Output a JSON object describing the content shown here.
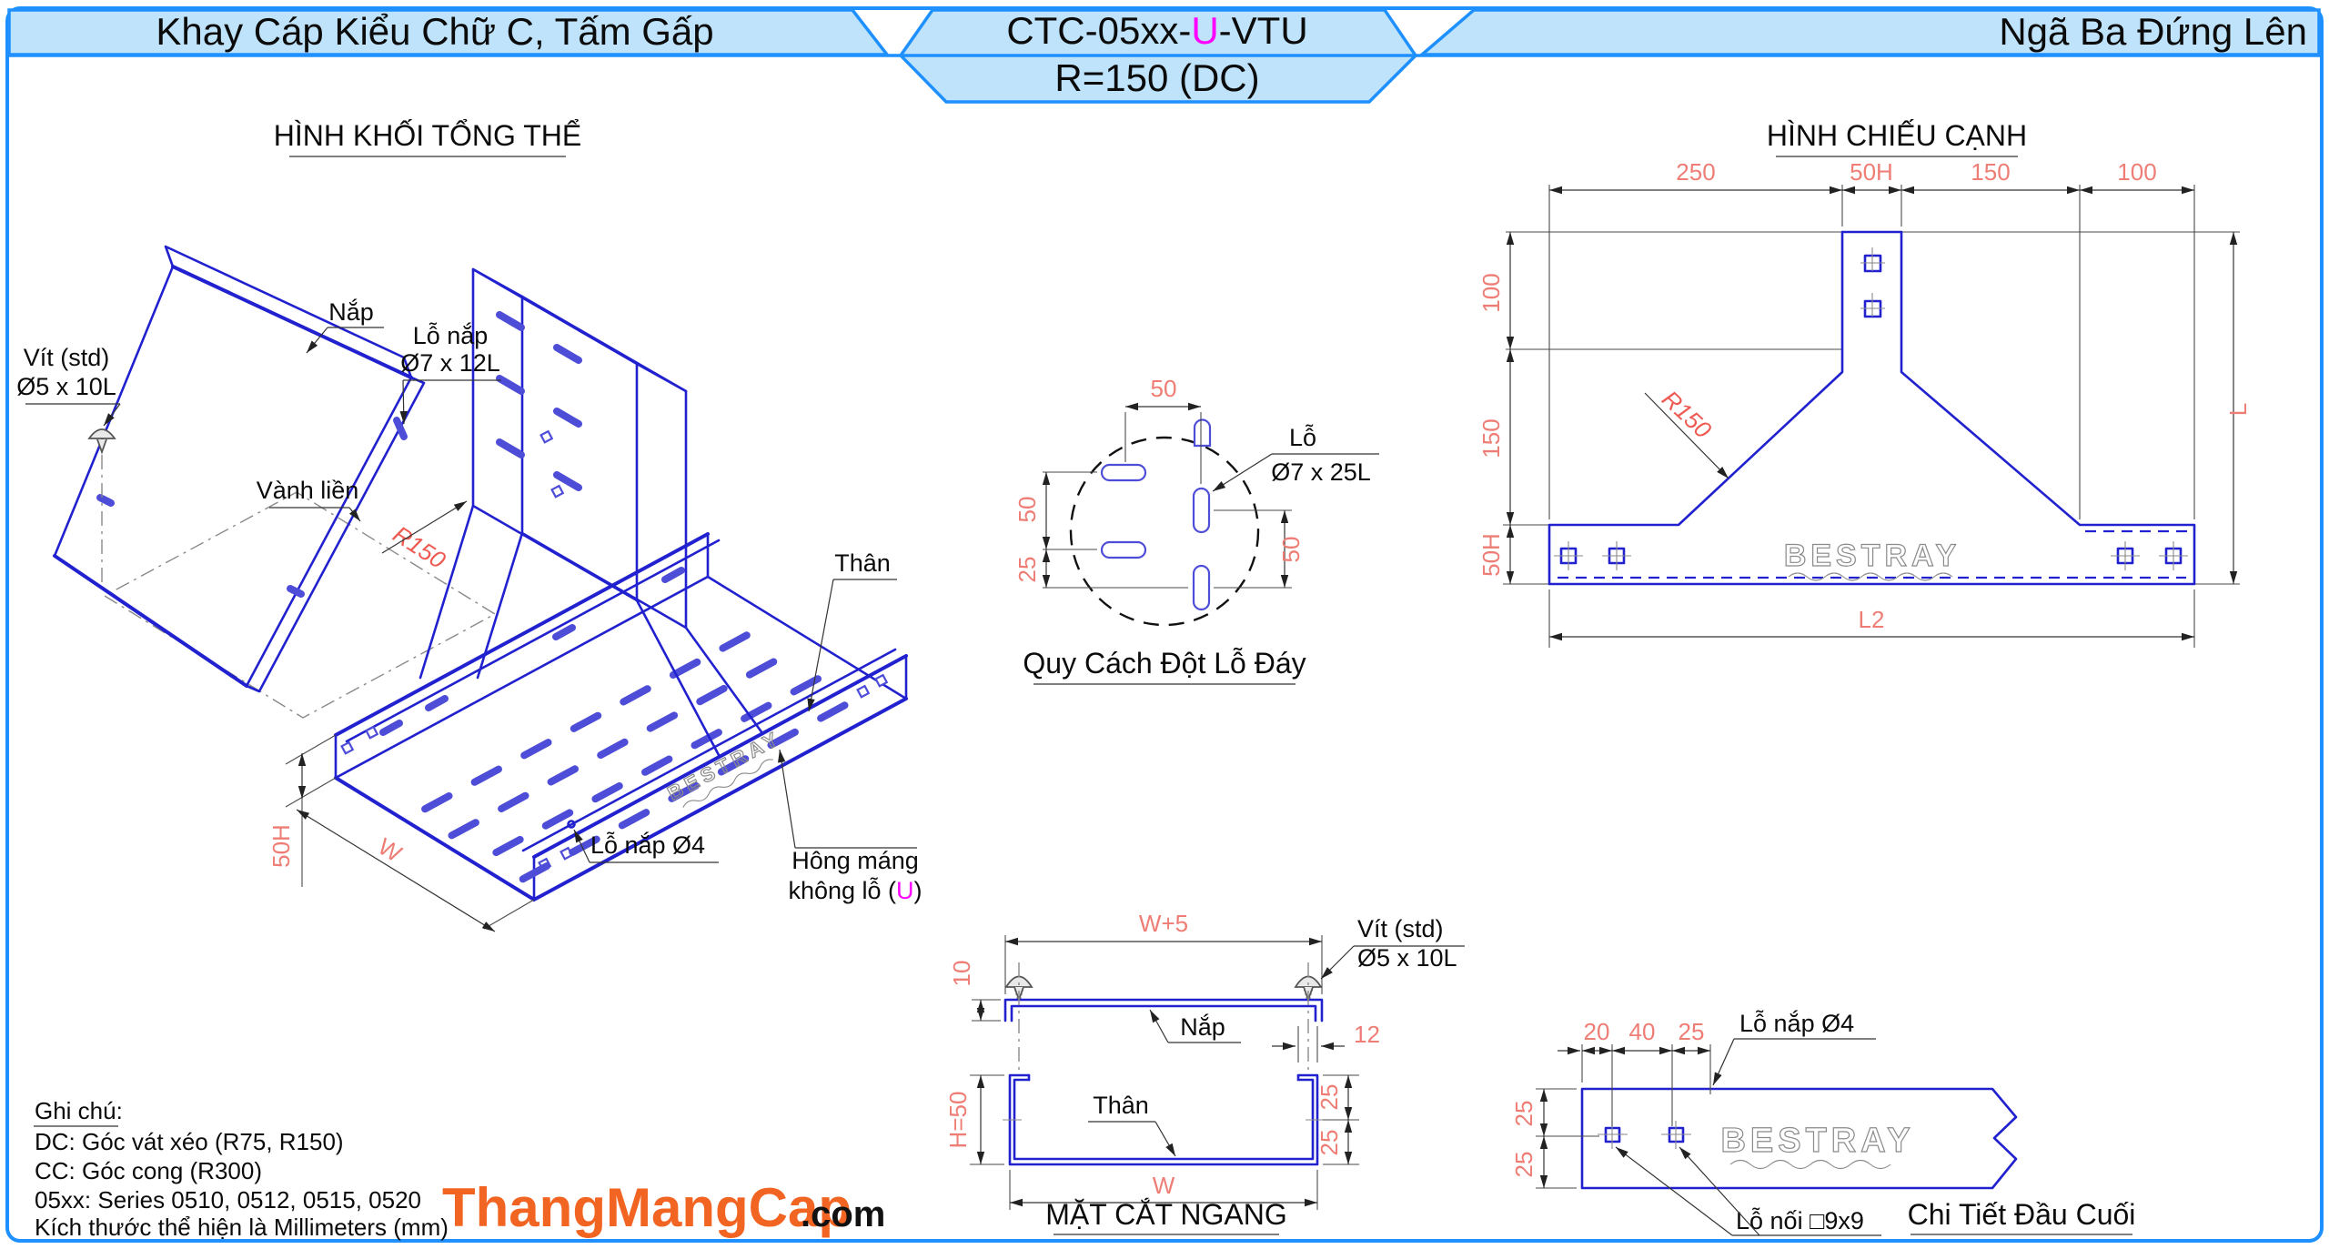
{
  "header": {
    "left_title": "Khay Cáp Kiểu Chữ C, Tấm Gấp",
    "code_pre": "CTC-05xx-",
    "code_u": "U",
    "code_post": "-VTU",
    "code_sub": "R=150 (DC)",
    "right_title": "Ngã Ba Đứng Lên"
  },
  "iso": {
    "title": "HÌNH KHỐI TỔNG THỂ",
    "nap": "Nắp",
    "vit_l1": "Vít (std)",
    "vit_l2": "Ø5 x 10L",
    "lonap_l1": "Lỗ nắp",
    "lonap_l2": "Ø7 x 12L",
    "vanh": "Vành liền",
    "r150": "R150",
    "than": "Thân",
    "hong_l1": "Hông máng",
    "hong_l2a": "không lỗ (",
    "hong_u": "U",
    "hong_l2b": ")",
    "lonap4": "Lỗ nắp Ø4",
    "d50h": "50H",
    "dw": "W"
  },
  "side": {
    "title": "HÌNH CHIẾU CẠNH",
    "d250": "250",
    "d50h_top": "50H",
    "d150_top": "150",
    "d100_top": "100",
    "v100": "100",
    "v150": "150",
    "v50h": "50H",
    "dl": "L",
    "dl2": "L2",
    "r150": "R150"
  },
  "punch": {
    "title": "Quy Cách Đột Lỗ Đáy",
    "top50": "50",
    "left50": "50",
    "left25": "25",
    "right50": "50",
    "lo": "Lỗ",
    "size": "Ø7 x 25L"
  },
  "section": {
    "title": "MẶT CẮT NGANG",
    "wp5": "W+5",
    "d10": "10",
    "d12": "12",
    "h50": "H=50",
    "d25a": "25",
    "d25b": "25",
    "w": "W",
    "nap": "Nắp",
    "than": "Thân",
    "vit_l1": "Vít (std)",
    "vit_l2": "Ø5 x 10L"
  },
  "end_detail": {
    "title": "Chi Tiết Đầu Cuối",
    "d20": "20",
    "d40": "40",
    "d25": "25",
    "v25a": "25",
    "v25b": "25",
    "lonap": "Lỗ nắp Ø4",
    "lonoi": "Lỗ nối □9x9"
  },
  "notes": {
    "heading": "Ghi chú:",
    "l1": "DC: Góc vát xéo (R75, R150)",
    "l2": "CC: Góc cong (R300)",
    "l3": "05xx: Series 0510, 0512, 0515, 0520",
    "l4": "Kích thước thể hiện là Millimeters (mm)"
  },
  "logo": {
    "main": "ThangMangCap",
    "tld": ".com"
  },
  "watermark": "BESTRAY",
  "colors": {
    "frame_blue": "#1e90ff",
    "panel_blue": "#bfe3fa",
    "line_blue": "#2121cf",
    "slot_blue": "#4d4dd8",
    "dim_red": "#ee7d75",
    "r150_red": "#ee5a52",
    "accent_magenta": "#ff00ff",
    "logo_orange": "#f26422"
  }
}
